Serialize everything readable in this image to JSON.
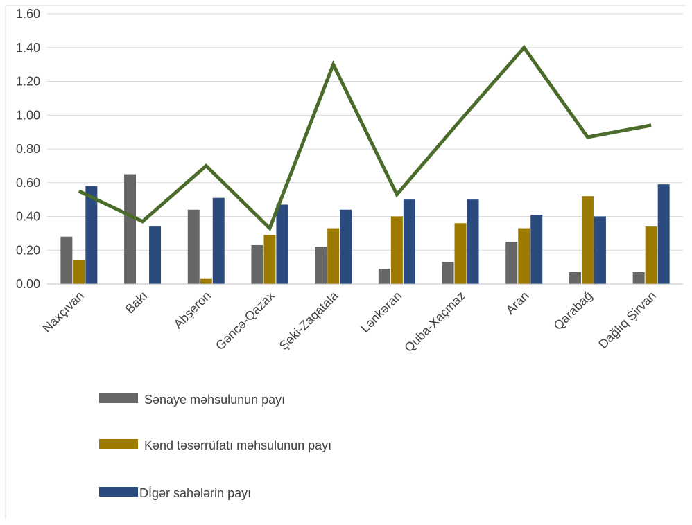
{
  "chart_data": {
    "type": "bar",
    "categories": [
      "Naxçıvan",
      "Bakı",
      "Abşeron",
      "Gəncə-Qazax",
      "Şəki-Zaqatala",
      "Lənkəran",
      "Quba-Xaçmaz",
      "Aran",
      "Qarabağ",
      "Dağlıq Şirvan"
    ],
    "series": [
      {
        "name": "Sənaye məhsulunun payı",
        "color": "#666666",
        "values": [
          0.28,
          0.65,
          0.44,
          0.23,
          0.22,
          0.09,
          0.13,
          0.25,
          0.07,
          0.07
        ]
      },
      {
        "name": "Kənd təsərrüfatı məhsulunun payı",
        "color": "#9C7A00",
        "values": [
          0.14,
          0.0,
          0.03,
          0.29,
          0.33,
          0.4,
          0.36,
          0.33,
          0.52,
          0.34
        ]
      },
      {
        "name": "Digər sahələrin payı",
        "color": "#2B4A7E",
        "values": [
          0.58,
          0.34,
          0.51,
          0.47,
          0.44,
          0.5,
          0.5,
          0.41,
          0.4,
          0.59
        ]
      }
    ],
    "line_series": {
      "name": "",
      "color": "#4A6B2A",
      "values": [
        0.55,
        0.37,
        0.7,
        0.33,
        1.3,
        0.53,
        0.97,
        1.4,
        0.87,
        0.94
      ]
    },
    "legend_labels": [
      "Sənaye məhsulunun payı",
      "Kənd təsərrüfatı məhsulunun payı",
      "Dİgər sahələrin payı"
    ],
    "y_ticks": [
      "0.00",
      "0.20",
      "0.40",
      "0.60",
      "0.80",
      "1.00",
      "1.20",
      "1.40",
      "1.60"
    ],
    "ylim": [
      0,
      1.6
    ],
    "xlabel": "",
    "ylabel": "",
    "title": "",
    "legend_position": "bottom-left",
    "grid": true
  }
}
